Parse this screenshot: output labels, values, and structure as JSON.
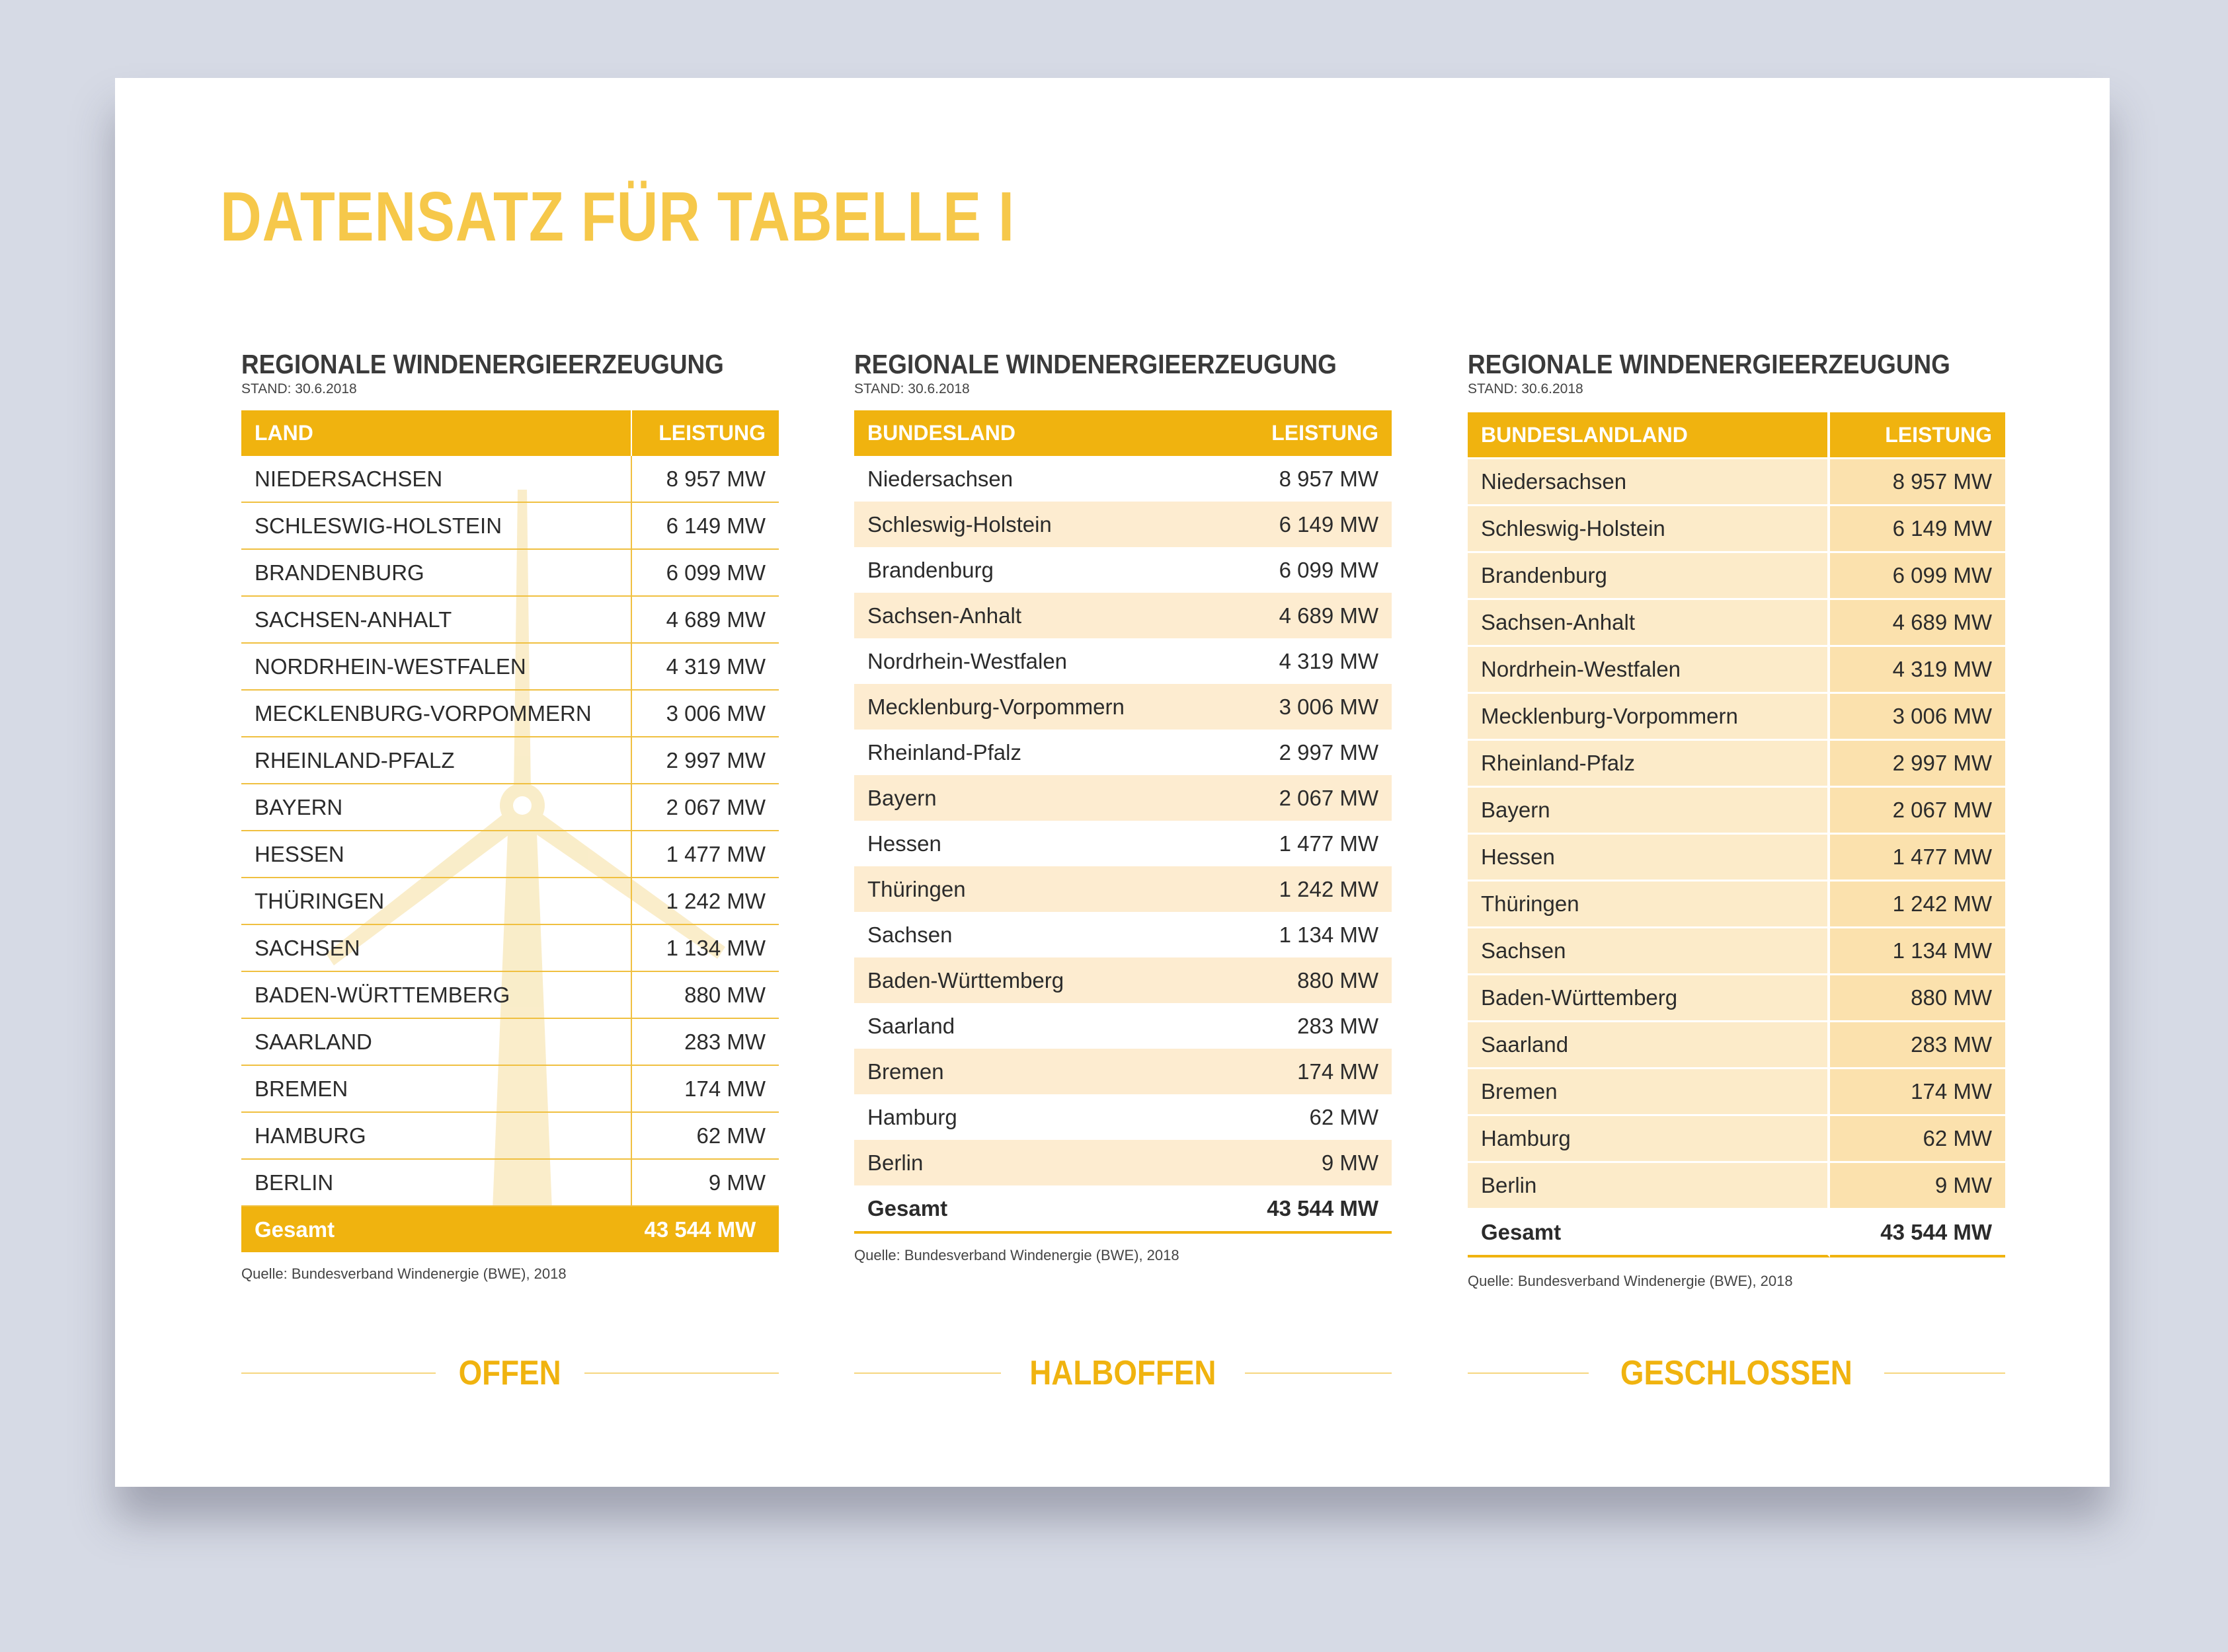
{
  "title": "DATENSATZ FÜR TABELLE I",
  "tables": [
    {
      "heading": "REGIONALE WINDENERGIEERZEUGUNG",
      "subheading": "STAND: 30.6.2018",
      "columns": [
        "LAND",
        "LEISTUNG"
      ],
      "rows": [
        [
          "NIEDERSACHSEN",
          "8 957 MW"
        ],
        [
          "SCHLESWIG-HOLSTEIN",
          "6 149 MW"
        ],
        [
          "BRANDENBURG",
          "6 099 MW"
        ],
        [
          "SACHSEN-ANHALT",
          "4 689 MW"
        ],
        [
          "NORDRHEIN-WESTFALEN",
          "4 319 MW"
        ],
        [
          "MECKLENBURG-VORPOMMERN",
          "3 006 MW"
        ],
        [
          "RHEINLAND-PFALZ",
          "2 997 MW"
        ],
        [
          "BAYERN",
          "2 067 MW"
        ],
        [
          "HESSEN",
          "1 477 MW"
        ],
        [
          "THÜRINGEN",
          "1 242 MW"
        ],
        [
          "SACHSEN",
          "1 134 MW"
        ],
        [
          "BADEN-WÜRTTEMBERG",
          "880 MW"
        ],
        [
          "SAARLAND",
          "283 MW"
        ],
        [
          "BREMEN",
          "174 MW"
        ],
        [
          "HAMBURG",
          "62 MW"
        ],
        [
          "BERLIN",
          "9 MW"
        ]
      ],
      "total": [
        "Gesamt",
        "43 544 MW"
      ],
      "source": "Quelle: Bundesverband Windenergie (BWE), 2018",
      "label": "OFFEN"
    },
    {
      "heading": "REGIONALE WINDENERGIEERZEUGUNG",
      "subheading": "STAND: 30.6.2018",
      "columns": [
        "BUNDESLAND",
        "LEISTUNG"
      ],
      "rows": [
        [
          "Niedersachsen",
          "8 957 MW"
        ],
        [
          "Schleswig-Holstein",
          "6 149 MW"
        ],
        [
          "Brandenburg",
          "6 099 MW"
        ],
        [
          "Sachsen-Anhalt",
          "4 689 MW"
        ],
        [
          "Nordrhein-Westfalen",
          "4 319 MW"
        ],
        [
          "Mecklenburg-Vorpommern",
          "3 006 MW"
        ],
        [
          "Rheinland-Pfalz",
          "2 997 MW"
        ],
        [
          "Bayern",
          "2 067 MW"
        ],
        [
          "Hessen",
          "1 477 MW"
        ],
        [
          "Thüringen",
          "1 242 MW"
        ],
        [
          "Sachsen",
          "1 134 MW"
        ],
        [
          "Baden-Württemberg",
          "880 MW"
        ],
        [
          "Saarland",
          "283 MW"
        ],
        [
          "Bremen",
          "174 MW"
        ],
        [
          "Hamburg",
          "62 MW"
        ],
        [
          "Berlin",
          "9 MW"
        ]
      ],
      "total": [
        "Gesamt",
        "43 544 MW"
      ],
      "source": "Quelle: Bundesverband Windenergie (BWE), 2018",
      "label": "HALBOFFEN"
    },
    {
      "heading": "REGIONALE WINDENERGIEERZEUGUNG",
      "subheading": "STAND: 30.6.2018",
      "columns": [
        "BUNDESLANDLAND",
        "LEISTUNG"
      ],
      "rows": [
        [
          "Niedersachsen",
          "8 957 MW"
        ],
        [
          "Schleswig-Holstein",
          "6 149 MW"
        ],
        [
          "Brandenburg",
          "6 099 MW"
        ],
        [
          "Sachsen-Anhalt",
          "4 689 MW"
        ],
        [
          "Nordrhein-Westfalen",
          "4 319 MW"
        ],
        [
          "Mecklenburg-Vorpommern",
          "3 006 MW"
        ],
        [
          "Rheinland-Pfalz",
          "2 997 MW"
        ],
        [
          "Bayern",
          "2 067 MW"
        ],
        [
          "Hessen",
          "1 477 MW"
        ],
        [
          "Thüringen",
          "1 242 MW"
        ],
        [
          "Sachsen",
          "1 134 MW"
        ],
        [
          "Baden-Württemberg",
          "880 MW"
        ],
        [
          "Saarland",
          "283 MW"
        ],
        [
          "Bremen",
          "174 MW"
        ],
        [
          "Hamburg",
          "62 MW"
        ],
        [
          "Berlin",
          "9 MW"
        ]
      ],
      "total": [
        "Gesamt",
        "43 544 MW"
      ],
      "source": "Quelle: Bundesverband Windenergie (BWE), 2018",
      "label": "GESCHLOSSEN"
    }
  ]
}
